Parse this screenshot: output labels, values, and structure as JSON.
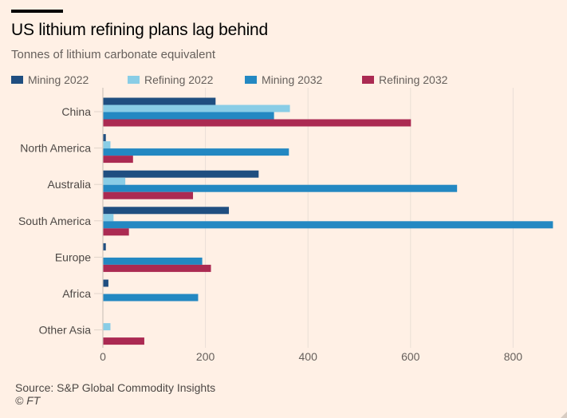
{
  "header": {
    "title": "US lithium refining plans lag behind",
    "subtitle": "Tonnes of lithium carbonate equivalent"
  },
  "footer": {
    "source": "Source: S&P Global Commodity Insights",
    "credit": "© FT"
  },
  "chart_data": {
    "type": "bar",
    "orientation": "horizontal",
    "title": "US lithium refining plans lag behind",
    "subtitle": "Tonnes of lithium carbonate equivalent",
    "xlabel": "",
    "ylabel": "",
    "xlim": [
      0,
      880
    ],
    "xticks": [
      0,
      200,
      400,
      600,
      800
    ],
    "grid": true,
    "legend_position": "top",
    "categories": [
      "China",
      "North America",
      "Australia",
      "South America",
      "Europe",
      "Africa",
      "Other Asia"
    ],
    "series": [
      {
        "name": "Mining 2022",
        "color": "#1f4e80",
        "values": [
          219,
          5,
          303,
          245,
          5,
          10,
          0
        ]
      },
      {
        "name": "Refining 2022",
        "color": "#89cde6",
        "values": [
          364,
          14,
          43,
          20,
          0,
          0,
          14
        ]
      },
      {
        "name": "Mining 2032",
        "color": "#2388c2",
        "values": [
          333,
          362,
          690,
          877,
          193,
          185,
          0
        ]
      },
      {
        "name": "Refining 2032",
        "color": "#ab2a52",
        "values": [
          600,
          58,
          175,
          50,
          210,
          0,
          80
        ]
      }
    ]
  }
}
